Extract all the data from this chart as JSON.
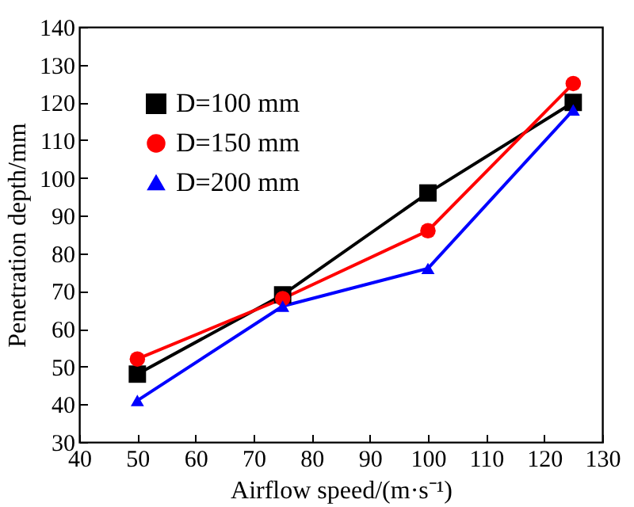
{
  "chart_data": {
    "type": "line",
    "xlabel": "Airflow speed/(m·s⁻¹)",
    "ylabel": "Penetration depth/mm",
    "x": [
      50,
      75,
      100,
      125
    ],
    "series": [
      {
        "name": "D=100 mm",
        "color": "#000000",
        "marker": "square",
        "values": [
          48,
          69,
          96,
          120
        ]
      },
      {
        "name": "D=150 mm",
        "color": "#ff0000",
        "marker": "circle",
        "values": [
          52,
          68,
          86,
          125
        ]
      },
      {
        "name": "D=200 mm",
        "color": "#0000ff",
        "marker": "triangle",
        "values": [
          41,
          66,
          76,
          118
        ]
      }
    ],
    "xlim": [
      40,
      130
    ],
    "xticks": [
      40,
      50,
      60,
      70,
      80,
      90,
      100,
      110,
      120,
      130
    ],
    "ylim": [
      30,
      140
    ],
    "yticks": [
      30,
      40,
      50,
      60,
      70,
      80,
      90,
      100,
      110,
      120,
      130,
      140
    ],
    "legend": "top left",
    "line_style": "solid",
    "grid": false
  }
}
